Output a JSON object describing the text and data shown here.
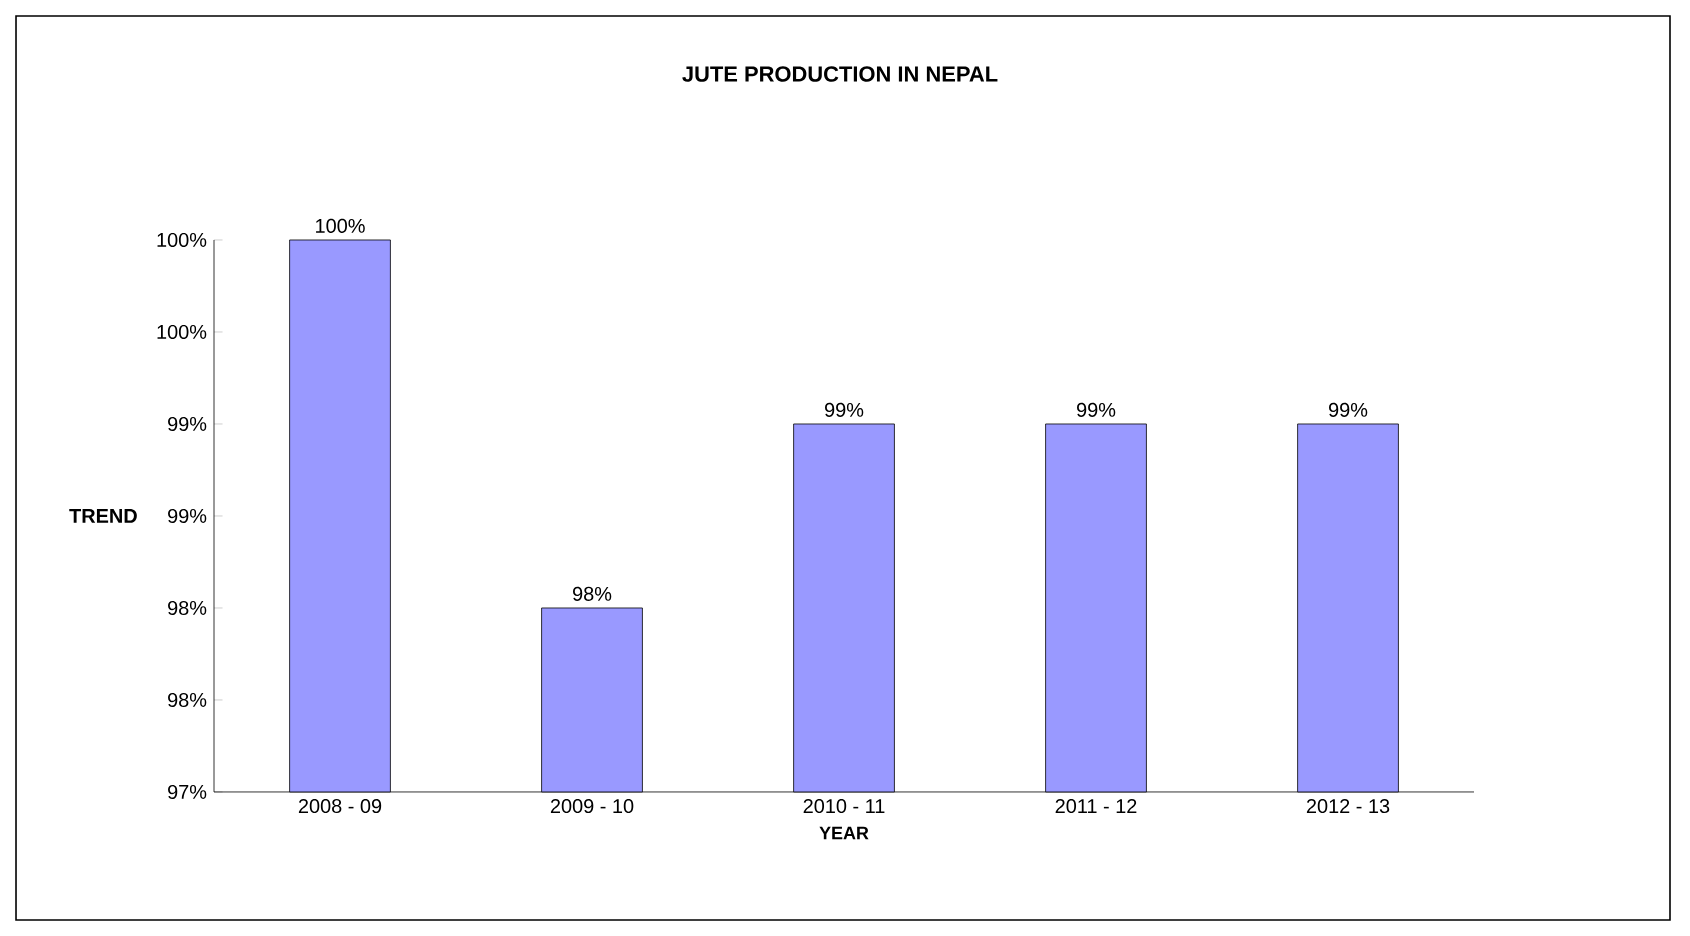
{
  "chart_data": {
    "type": "bar",
    "title": "JUTE PRODUCTION IN NEPAL",
    "xlabel": "YEAR",
    "ylabel": "TREND",
    "categories": [
      "2008 - 09",
      "2009 - 10",
      "2010 - 11",
      "2011 - 12",
      "2012 - 13"
    ],
    "values": [
      100.0,
      98.0,
      99.0,
      99.0,
      99.0
    ],
    "value_labels": [
      "100%",
      "98%",
      "99%",
      "99%",
      "99%"
    ],
    "color": "#9999ff",
    "ylim": [
      97,
      100
    ],
    "yticks": [
      {
        "value": 97.0,
        "label": "97%"
      },
      {
        "value": 97.5,
        "label": "98%"
      },
      {
        "value": 98.0,
        "label": "98%"
      },
      {
        "value": 98.5,
        "label": "99%"
      },
      {
        "value": 99.0,
        "label": "99%"
      },
      {
        "value": 99.5,
        "label": "100%"
      },
      {
        "value": 100.0,
        "label": "100%"
      }
    ]
  }
}
